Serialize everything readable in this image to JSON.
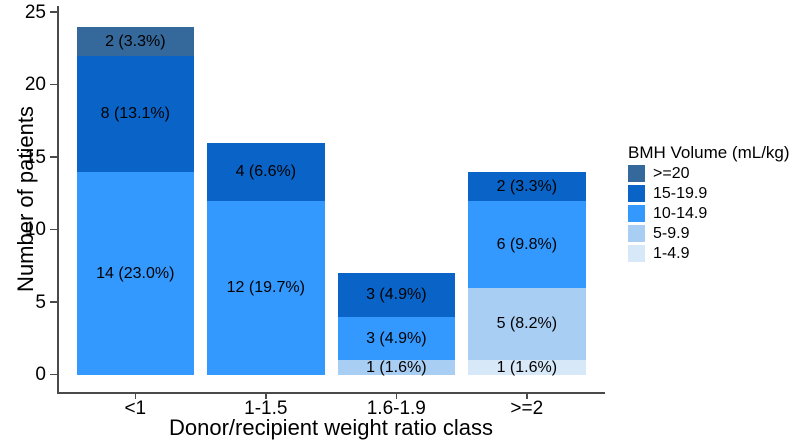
{
  "chart_data": {
    "type": "bar",
    "stacked": true,
    "title": "",
    "xlabel": "Donor/recipient weight ratio class",
    "ylabel": "Number of patients",
    "ylim": [
      0,
      25
    ],
    "yticks": [
      0,
      5,
      10,
      15,
      20,
      25
    ],
    "grid": false,
    "categories": [
      "<1",
      "1-1.5",
      "1.6-1.9",
      ">=2"
    ],
    "bar_totals": [
      24,
      16,
      7,
      14
    ],
    "legend_title": "BMH Volume (mL/kg)",
    "legend_position": "right",
    "stack_order_bottom_to_top": [
      "1-4.9",
      "5-9.9",
      "10-14.9",
      "15-19.9",
      ">=20"
    ],
    "series": [
      {
        "name": ">=20",
        "color": "#35689B",
        "values": [
          2,
          0,
          0,
          0
        ],
        "labels": [
          "2 (3.3%)",
          "",
          "",
          ""
        ]
      },
      {
        "name": "15-19.9",
        "color": "#0A64C8",
        "values": [
          8,
          4,
          3,
          2
        ],
        "labels": [
          "8 (13.1%)",
          "4 (6.6%)",
          "3 (4.9%)",
          "2 (3.3%)"
        ]
      },
      {
        "name": "10-14.9",
        "color": "#3399FF",
        "values": [
          14,
          12,
          3,
          6
        ],
        "labels": [
          "14 (23.0%)",
          "12 (19.7%)",
          "3 (4.9%)",
          "6 (9.8%)"
        ]
      },
      {
        "name": "5-9.9",
        "color": "#A9CEF3",
        "values": [
          0,
          0,
          1,
          5
        ],
        "labels": [
          "",
          "",
          "1 (1.6%)",
          "5 (8.2%)"
        ]
      },
      {
        "name": "1-4.9",
        "color": "#D7E8F9",
        "values": [
          0,
          0,
          0,
          1
        ],
        "labels": [
          "",
          "",
          "",
          "1 (1.6%)"
        ]
      }
    ],
    "axis_color": "#4A4A4A",
    "text_color": "#000000"
  }
}
